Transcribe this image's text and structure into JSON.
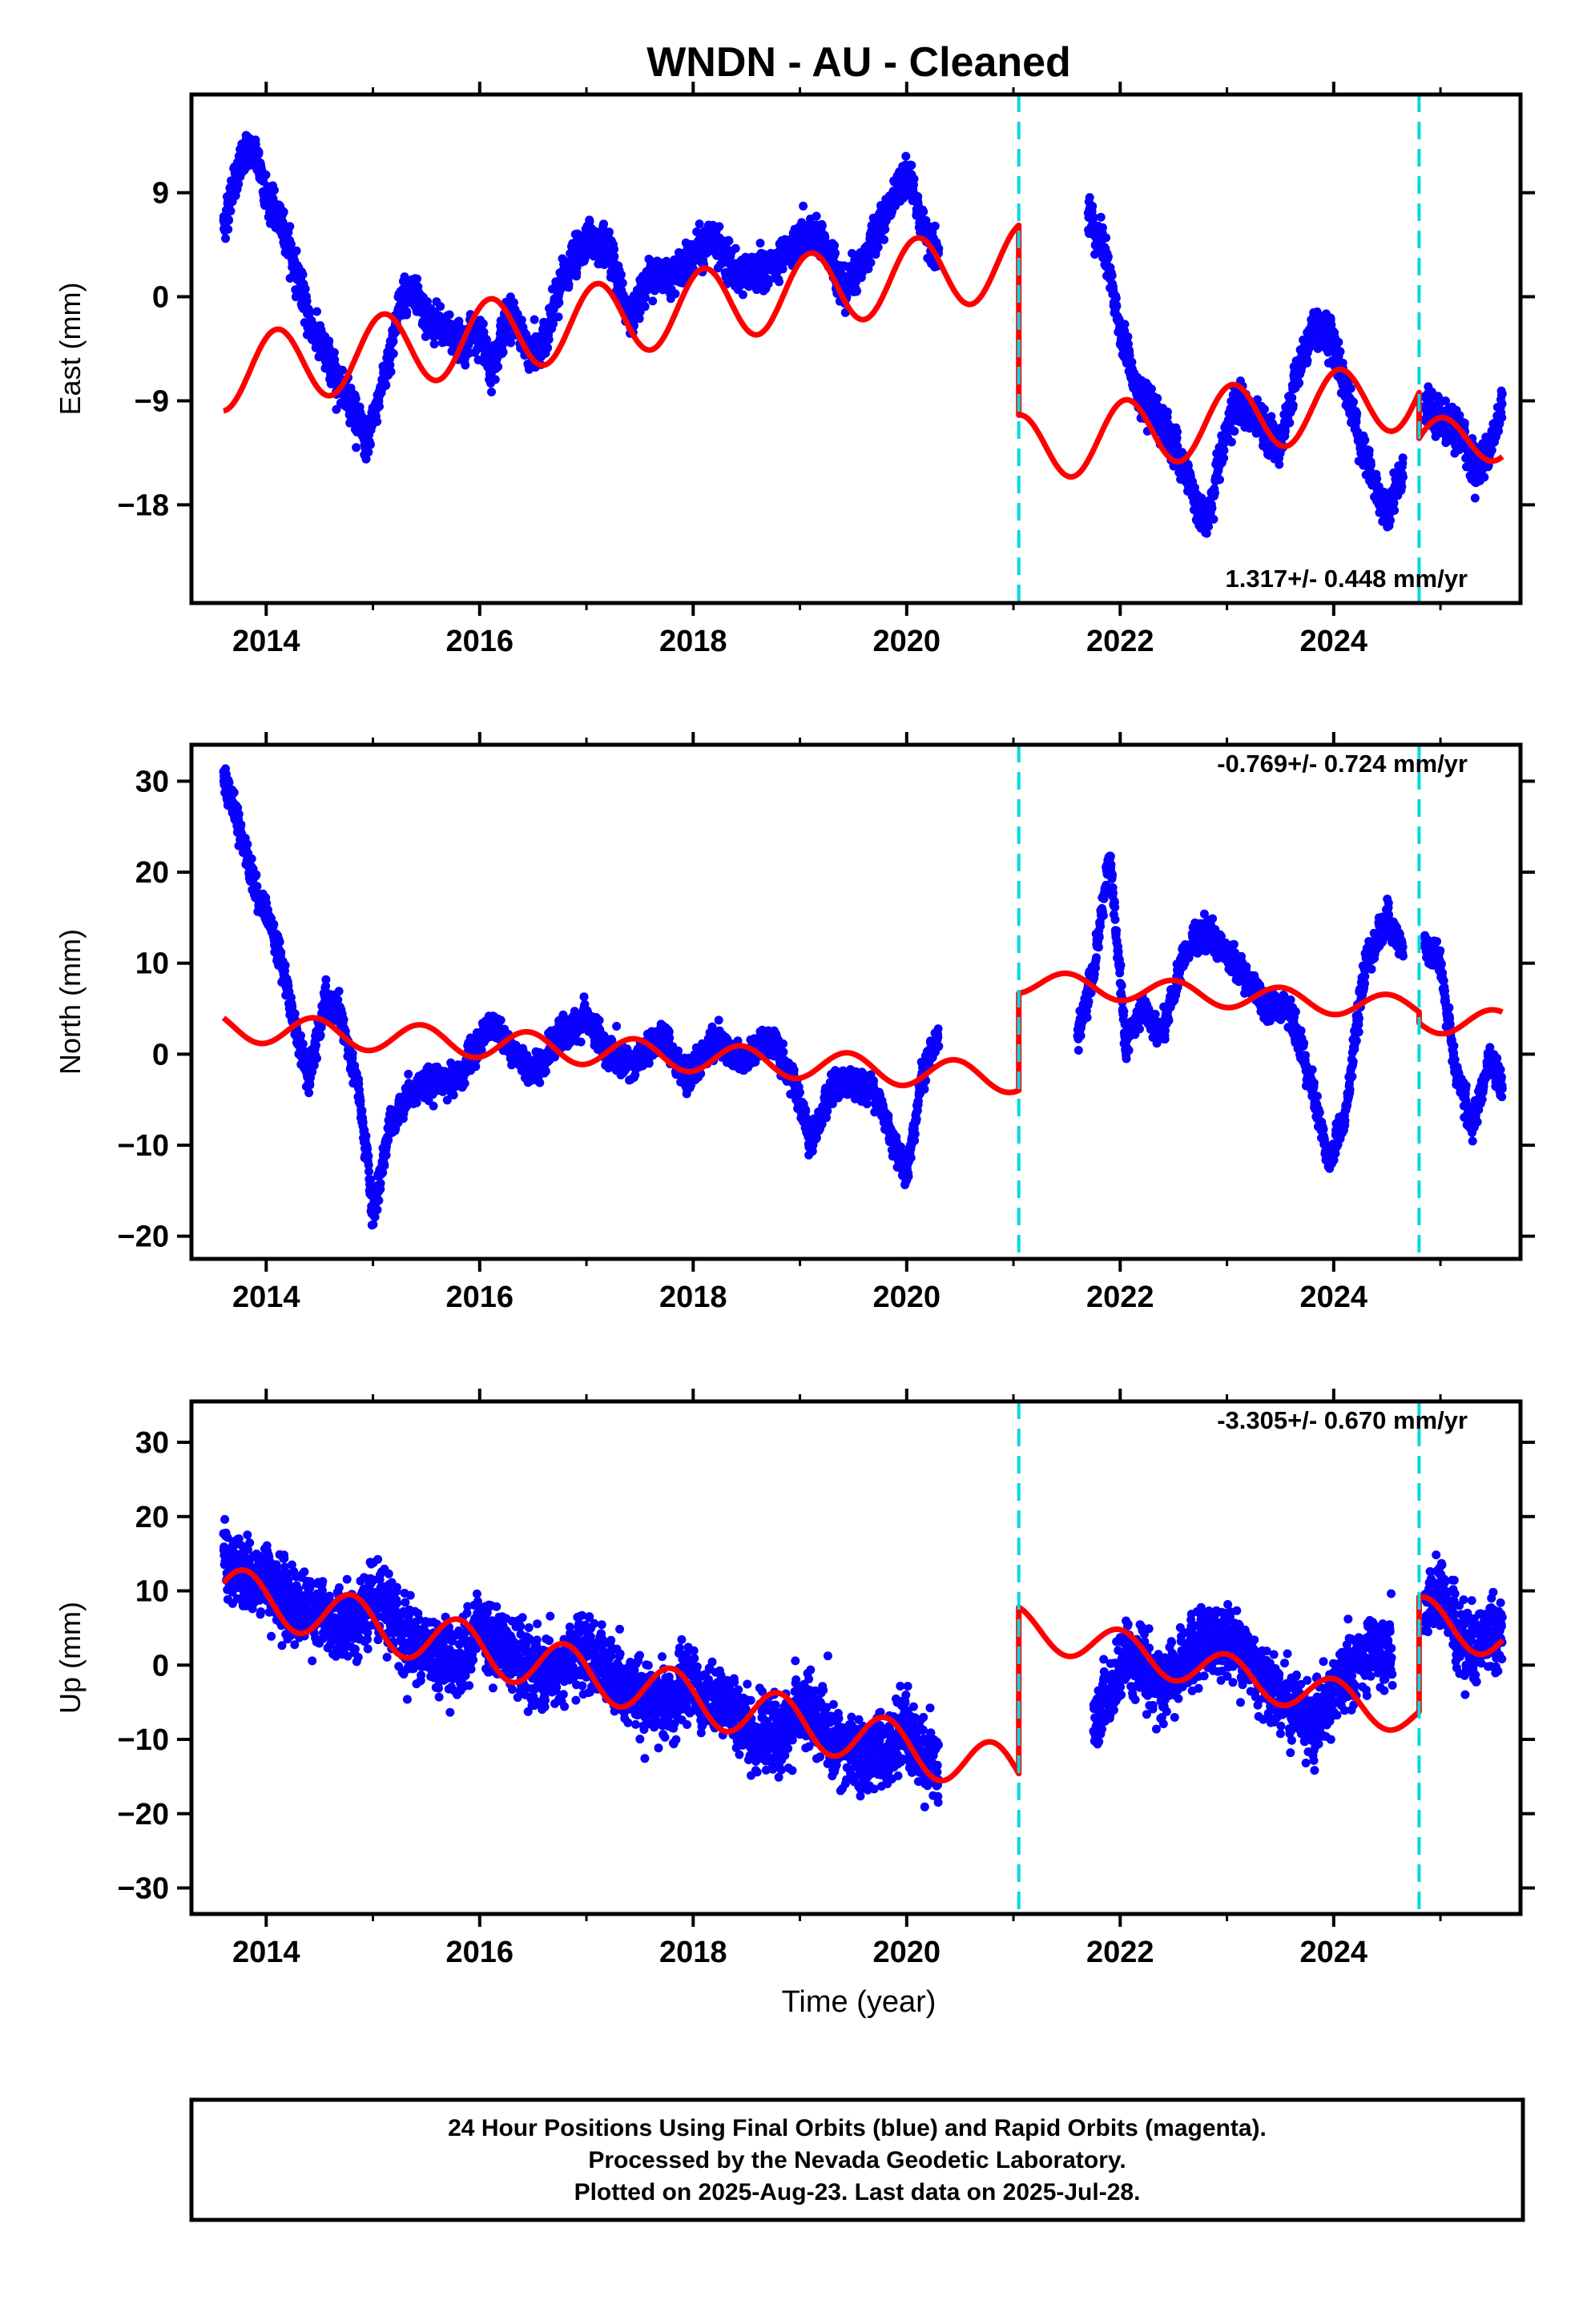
{
  "colors": {
    "data": "#0a00ff",
    "model": "#ff0000",
    "offset": "#00d9e0",
    "frame": "#000000"
  },
  "chart_data": {
    "type": "scatter",
    "title": "WNDN  - AU - Cleaned",
    "xlabel": "Time (year)",
    "xlim": [
      2013.3,
      2025.75
    ],
    "x_ticks": [
      2014,
      2016,
      2018,
      2020,
      2022,
      2024
    ],
    "x_tick_labels": [
      "2014",
      "2016",
      "2018",
      "2020",
      "2022",
      "2024"
    ],
    "offsets": [
      2021.05,
      2024.8
    ],
    "panels": [
      {
        "key": "east",
        "ylabel": "East (mm)",
        "ylim": [
          -26.5,
          17.5
        ],
        "y_ticks": [
          9,
          0,
          -9,
          -18
        ],
        "y_tick_labels": [
          "9",
          "0",
          "−9",
          "−18"
        ],
        "rate": "1.317+/- 0.448 mm/yr",
        "rate_position": "bottom-right",
        "series": [
          {
            "kind": "points",
            "segments": [
              {
                "x": [
                  2013.6,
                  2013.7,
                  2013.85,
                  2013.95,
                  2014.0,
                  2014.2,
                  2014.4,
                  2014.6,
                  2014.8,
                  2014.95,
                  2015.1,
                  2015.3,
                  2015.5,
                  2015.7,
                  2015.85,
                  2016.0,
                  2016.1,
                  2016.3,
                  2016.45,
                  2016.6,
                  2016.8,
                  2017.0,
                  2017.2,
                  2017.4,
                  2017.6,
                  2017.8,
                  2018.0,
                  2018.2,
                  2018.4,
                  2018.6,
                  2018.8,
                  2019.0,
                  2019.2,
                  2019.4,
                  2019.6,
                  2019.8,
                  2020.0,
                  2020.15,
                  2020.3
                ],
                "y": [
                  6,
                  10,
                  13,
                  11,
                  9,
                  5,
                  -2,
                  -6,
                  -9,
                  -13,
                  -7,
                  1,
                  -2,
                  -3,
                  -4,
                  -3,
                  -6,
                  -1,
                  -5,
                  -4,
                  2,
                  5,
                  4,
                  -2,
                  2,
                  2,
                  4,
                  5,
                  2,
                  2,
                  3,
                  5,
                  5,
                  1,
                  3,
                  7,
                  11,
                  6,
                  4
                ]
              },
              {
                "x": [
                  2021.7,
                  2021.85,
                  2022.0,
                  2022.2,
                  2022.4,
                  2022.6,
                  2022.8,
                  2022.95,
                  2023.1,
                  2023.3,
                  2023.5,
                  2023.7,
                  2023.85,
                  2024.0,
                  2024.15,
                  2024.3,
                  2024.5,
                  2024.65
                ],
                "y": [
                  7,
                  4,
                  -3,
                  -9,
                  -11,
                  -15,
                  -20,
                  -13,
                  -9,
                  -11,
                  -13,
                  -5,
                  -2,
                  -4,
                  -9,
                  -14,
                  -19,
                  -15
                ]
              },
              {
                "x": [
                  2024.85,
                  2025.0,
                  2025.2,
                  2025.35,
                  2025.5,
                  2025.58
                ],
                "y": [
                  -9,
                  -11,
                  -12,
                  -15,
                  -12,
                  -9
                ]
              }
            ]
          },
          {
            "kind": "model",
            "segments": [
              {
                "x0": 2013.6,
                "x1": 2021.05,
                "base": -1.8,
                "slope": 1.317,
                "t0": 2017.3,
                "amp": 3.2,
                "phase": 2014.1
              },
              {
                "x0": 2021.05,
                "x1": 2024.8,
                "base": -10.8,
                "slope": 1.317,
                "t0": 2022.9,
                "amp": 3.0,
                "phase": 2023.05
              },
              {
                "x0": 2024.8,
                "x1": 2025.58,
                "base": -12.4,
                "slope": 1.317,
                "t0": 2025.2,
                "amp": 2.2,
                "phase": 2025.0
              }
            ]
          }
        ]
      },
      {
        "key": "north",
        "ylabel": "North (mm)",
        "ylim": [
          -22.5,
          34.0
        ],
        "y_ticks": [
          30,
          20,
          10,
          0,
          -10,
          -20
        ],
        "y_tick_labels": [
          "30",
          "20",
          "10",
          "0",
          "−10",
          "−20"
        ],
        "rate": "-0.769+/- 0.724 mm/yr",
        "rate_position": "top-right",
        "series": [
          {
            "kind": "points",
            "segments": [
              {
                "x": [
                  2013.6,
                  2013.75,
                  2013.9,
                  2014.05,
                  2014.15,
                  2014.25,
                  2014.4,
                  2014.55,
                  2014.7,
                  2014.85,
                  2014.95,
                  2015.0,
                  2015.15,
                  2015.35,
                  2015.55,
                  2015.75,
                  2015.95,
                  2016.1,
                  2016.3,
                  2016.5,
                  2016.75,
                  2017.0,
                  2017.2,
                  2017.45,
                  2017.7,
                  2017.95,
                  2018.2,
                  2018.45,
                  2018.7,
                  2018.95,
                  2019.1,
                  2019.3,
                  2019.5,
                  2019.7,
                  2019.9,
                  2020.0,
                  2020.15,
                  2020.3
                ],
                "y": [
                  31,
                  25,
                  18,
                  14,
                  10,
                  4,
                  -3,
                  6,
                  4,
                  -3,
                  -12,
                  -18,
                  -8,
                  -4,
                  -3,
                  -3,
                  0,
                  4,
                  0,
                  -2,
                  2,
                  4,
                  0,
                  -1,
                  2,
                  -3,
                  2,
                  -1,
                  2,
                  -3,
                  -10,
                  -4,
                  -3,
                  -4,
                  -10,
                  -13,
                  -2,
                  2
                ]
              },
              {
                "x": [
                  2021.6,
                  2021.75,
                  2021.9,
                  2022.05,
                  2022.2,
                  2022.4,
                  2022.6,
                  2022.8,
                  2023.0,
                  2023.2,
                  2023.4,
                  2023.6,
                  2023.8,
                  2023.95,
                  2024.1,
                  2024.3,
                  2024.5,
                  2024.65
                ],
                "y": [
                  2,
                  9,
                  22,
                  1,
                  5,
                  2,
                  11,
                  14,
                  11,
                  8,
                  5,
                  5,
                  -4,
                  -12,
                  -7,
                  10,
                  15,
                  11
                ]
              },
              {
                "x": [
                  2024.85,
                  2025.0,
                  2025.15,
                  2025.3,
                  2025.45,
                  2025.58
                ],
                "y": [
                  12,
                  10,
                  -2,
                  -8,
                  -1,
                  -3
                ]
              }
            ]
          },
          {
            "kind": "model",
            "segments": [
              {
                "x0": 2013.6,
                "x1": 2021.05,
                "base": 0.2,
                "slope": -0.769,
                "t0": 2017.3,
                "amp": 1.6,
                "phase": 2014.45
              },
              {
                "x0": 2021.05,
                "x1": 2024.8,
                "base": 6.5,
                "slope": -0.769,
                "t0": 2022.9,
                "amp": 1.3,
                "phase": 2021.5
              },
              {
                "x0": 2024.8,
                "x1": 2025.58,
                "base": 3.6,
                "slope": -0.769,
                "t0": 2025.2,
                "amp": 1.5,
                "phase": 2025.5
              }
            ]
          }
        ]
      },
      {
        "key": "up",
        "ylabel": "Up (mm)",
        "ylim": [
          -33.5,
          35.5
        ],
        "y_ticks": [
          30,
          20,
          10,
          0,
          -10,
          -20,
          -30
        ],
        "y_tick_labels": [
          "30",
          "20",
          "10",
          "0",
          "−10",
          "−20",
          "−30"
        ],
        "rate": "-3.305+/- 0.670 mm/yr",
        "rate_position": "top-right",
        "series": [
          {
            "kind": "points",
            "segments": [
              {
                "x": [
                  2013.6,
                  2013.8,
                  2014.0,
                  2014.2,
                  2014.4,
                  2014.6,
                  2014.8,
                  2015.0,
                  2015.2,
                  2015.4,
                  2015.6,
                  2015.8,
                  2016.0,
                  2016.2,
                  2016.4,
                  2016.6,
                  2016.8,
                  2017.0,
                  2017.2,
                  2017.4,
                  2017.6,
                  2017.8,
                  2018.0,
                  2018.2,
                  2018.4,
                  2018.6,
                  2018.8,
                  2019.0,
                  2019.2,
                  2019.4,
                  2019.6,
                  2019.8,
                  2020.0,
                  2020.2,
                  2020.3
                ],
                "y": [
                  14,
                  12,
                  12,
                  9,
                  8,
                  6,
                  5,
                  8,
                  6,
                  3,
                  2,
                  0,
                  5,
                  3,
                  0,
                  -2,
                  0,
                  2,
                  0,
                  -3,
                  -5,
                  -5,
                  -2,
                  -5,
                  -7,
                  -9,
                  -10,
                  -6,
                  -8,
                  -11,
                  -13,
                  -12,
                  -9,
                  -12,
                  -14
                ]
              },
              {
                "x": [
                  2021.75,
                  2021.9,
                  2022.05,
                  2022.2,
                  2022.4,
                  2022.6,
                  2022.8,
                  2023.0,
                  2023.2,
                  2023.4,
                  2023.6,
                  2023.8,
                  2024.0,
                  2024.2,
                  2024.4,
                  2024.55
                ],
                "y": [
                  -8,
                  -4,
                  2,
                  0,
                  -3,
                  0,
                  2,
                  4,
                  1,
                  -2,
                  -5,
                  -8,
                  -4,
                  0,
                  2,
                  1
                ]
              },
              {
                "x": [
                  2024.85,
                  2025.0,
                  2025.15,
                  2025.3,
                  2025.45,
                  2025.58
                ],
                "y": [
                  6,
                  10,
                  5,
                  3,
                  4,
                  3
                ]
              }
            ]
          },
          {
            "kind": "model",
            "segments": [
              {
                "x0": 2013.6,
                "x1": 2021.05,
                "base": -2.2,
                "slope": -3.305,
                "t0": 2017.3,
                "amp": 3.4,
                "phase": 2013.8
              },
              {
                "x0": 2021.05,
                "x1": 2024.8,
                "base": -0.8,
                "slope": -3.305,
                "t0": 2022.9,
                "amp": 2.6,
                "phase": 2022.0
              },
              {
                "x0": 2024.8,
                "x1": 2025.58,
                "base": 5.0,
                "slope": -3.305,
                "t0": 2025.2,
                "amp": 3.0,
                "phase": 2024.85
              }
            ]
          }
        ]
      }
    ]
  },
  "footer": {
    "lines": [
      "24 Hour Positions Using Final Orbits (blue) and Rapid Orbits (magenta).",
      "Processed by the Nevada Geodetic Laboratory.",
      "Plotted on 2025-Aug-23. Last data on 2025-Jul-28."
    ]
  }
}
